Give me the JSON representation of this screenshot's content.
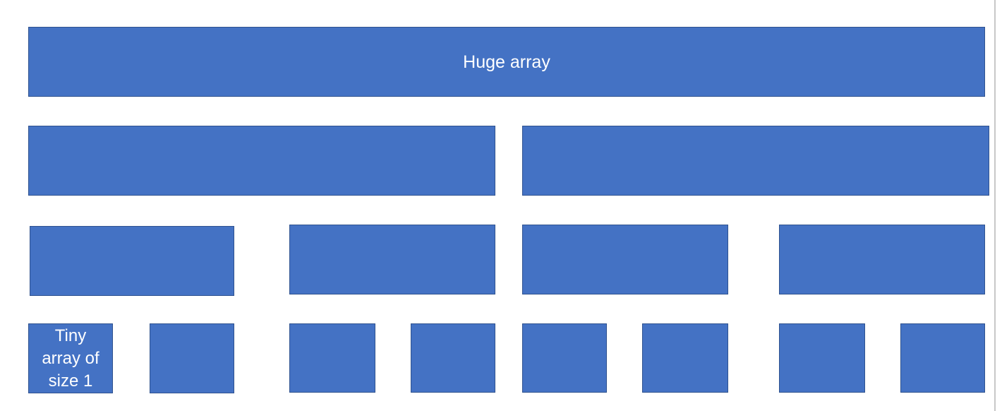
{
  "diagram": {
    "root_label": "Huge array",
    "leaf_label": "Tiny\narray of\nsize 1",
    "colors": {
      "block_fill": "#4472c4",
      "block_border": "#2f528f",
      "text": "#ffffff"
    }
  }
}
